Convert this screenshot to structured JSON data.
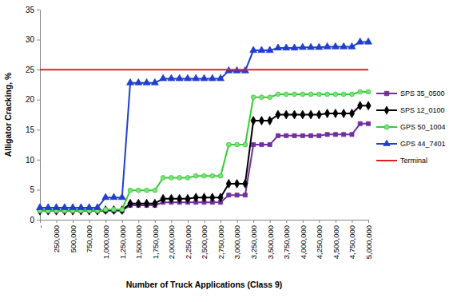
{
  "chart_data": {
    "type": "line",
    "x_label": "Number of Truck Applications (Class 9)",
    "y_label": "Alligator Cracking, %",
    "x": [
      0,
      125000,
      250000,
      375000,
      500000,
      625000,
      750000,
      875000,
      1000000,
      1125000,
      1250000,
      1375000,
      1500000,
      1625000,
      1750000,
      1875000,
      2000000,
      2125000,
      2250000,
      2375000,
      2500000,
      2625000,
      2750000,
      2875000,
      3000000,
      3125000,
      3250000,
      3375000,
      3500000,
      3625000,
      3750000,
      3875000,
      4000000,
      4125000,
      4250000,
      4375000,
      4500000,
      4625000,
      4750000,
      4875000,
      5000000
    ],
    "series": [
      {
        "name": "SPS 35_0500",
        "color": "#7030a0",
        "marker": "square",
        "values": [
          1.5,
          1.5,
          1.5,
          1.5,
          1.5,
          1.5,
          1.5,
          1.5,
          1.5,
          1.5,
          1.5,
          2.4,
          2.4,
          2.4,
          2.4,
          2.9,
          2.9,
          2.9,
          2.9,
          2.9,
          2.9,
          2.9,
          2.9,
          4.1,
          4.1,
          4.1,
          12.5,
          12.5,
          12.5,
          14.0,
          14.0,
          14.0,
          14.0,
          14.0,
          14.0,
          14.2,
          14.2,
          14.2,
          14.2,
          16.0,
          16.0
        ]
      },
      {
        "name": "SPS 12_0100",
        "color": "#000000",
        "marker": "diamond",
        "values": [
          1.5,
          1.5,
          1.5,
          1.5,
          1.5,
          1.5,
          1.5,
          1.5,
          1.6,
          1.6,
          1.6,
          2.7,
          2.7,
          2.7,
          2.7,
          3.5,
          3.5,
          3.5,
          3.5,
          3.7,
          3.7,
          3.7,
          3.7,
          6.0,
          6.0,
          6.0,
          16.5,
          16.5,
          16.5,
          17.5,
          17.5,
          17.5,
          17.5,
          17.5,
          17.5,
          17.7,
          17.7,
          17.7,
          17.7,
          19.0,
          19.0
        ]
      },
      {
        "name": "GPS 50_1004",
        "color": "#33cc33",
        "marker": "circle",
        "values": [
          1.5,
          1.5,
          1.5,
          1.5,
          1.5,
          1.5,
          1.5,
          1.5,
          1.7,
          1.7,
          1.7,
          4.9,
          4.9,
          4.9,
          4.9,
          7.0,
          7.0,
          7.0,
          7.0,
          7.3,
          7.3,
          7.3,
          7.3,
          12.5,
          12.5,
          12.5,
          20.4,
          20.4,
          20.4,
          20.9,
          20.9,
          20.9,
          20.9,
          20.9,
          20.9,
          20.9,
          20.9,
          20.9,
          20.9,
          21.3,
          21.3
        ]
      },
      {
        "name": "GPS 44_7401",
        "color": "#1f3fcf",
        "marker": "triangle",
        "values": [
          2.0,
          2.0,
          2.0,
          2.0,
          2.0,
          2.0,
          2.0,
          2.0,
          3.7,
          3.7,
          3.7,
          22.8,
          22.8,
          22.8,
          22.8,
          23.5,
          23.5,
          23.5,
          23.5,
          23.5,
          23.5,
          23.5,
          23.5,
          24.8,
          24.8,
          24.8,
          28.2,
          28.2,
          28.2,
          28.6,
          28.6,
          28.6,
          28.7,
          28.7,
          28.7,
          28.8,
          28.8,
          28.8,
          28.8,
          29.6,
          29.6
        ]
      },
      {
        "name": "Terminal",
        "color": "#e02020",
        "marker": "none",
        "values": [
          25,
          25,
          25,
          25,
          25,
          25,
          25,
          25,
          25,
          25,
          25,
          25,
          25,
          25,
          25,
          25,
          25,
          25,
          25,
          25,
          25,
          25,
          25,
          25,
          25,
          25,
          25,
          25,
          25,
          25,
          25,
          25,
          25,
          25,
          25,
          25,
          25,
          25,
          25,
          25,
          25
        ]
      }
    ],
    "xlim": [
      0,
      5000000
    ],
    "xticks": [
      {
        "value": 0,
        "label": "-"
      },
      {
        "value": 250000,
        "label": "250,000"
      },
      {
        "value": 500000,
        "label": "500,000"
      },
      {
        "value": 750000,
        "label": "750,000"
      },
      {
        "value": 1000000,
        "label": "1,000,000"
      },
      {
        "value": 1250000,
        "label": "1,250,000"
      },
      {
        "value": 1500000,
        "label": "1,500,000"
      },
      {
        "value": 1750000,
        "label": "1,750,000"
      },
      {
        "value": 2000000,
        "label": "2,000,000"
      },
      {
        "value": 2250000,
        "label": "2,250,000"
      },
      {
        "value": 2500000,
        "label": "2,500,000"
      },
      {
        "value": 2750000,
        "label": "2,750,000"
      },
      {
        "value": 3000000,
        "label": "3,000,000"
      },
      {
        "value": 3250000,
        "label": "3,250,000"
      },
      {
        "value": 3500000,
        "label": "3,500,000"
      },
      {
        "value": 3750000,
        "label": "3,750,000"
      },
      {
        "value": 4000000,
        "label": "4,000,000"
      },
      {
        "value": 4250000,
        "label": "4,250,000"
      },
      {
        "value": 4500000,
        "label": "4,500,000"
      },
      {
        "value": 4750000,
        "label": "4,750,000"
      },
      {
        "value": 5000000,
        "label": "5,000,000"
      }
    ],
    "ylim": [
      0,
      35
    ],
    "yticks": [
      0,
      5,
      10,
      15,
      20,
      25,
      30,
      35
    ],
    "grid": false,
    "legend": "right"
  }
}
